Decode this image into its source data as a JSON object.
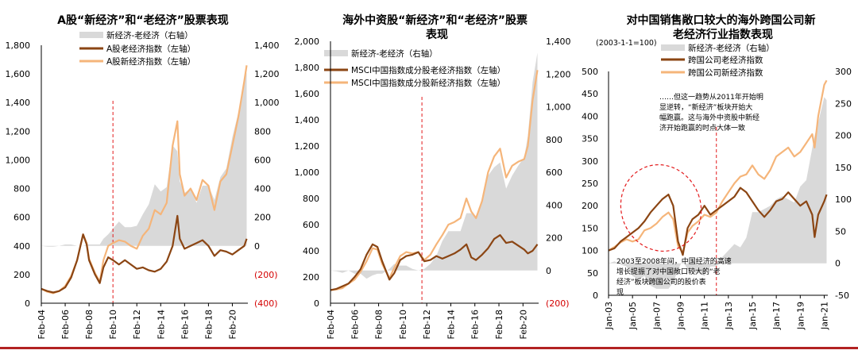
{
  "colors": {
    "old_economy": "#8B4513",
    "new_economy": "#F5B57A",
    "spread_area": "#D9D9D9",
    "vline": "#E31A1C",
    "negative_tick": "#D40000",
    "bottom_rule": "#B22222"
  },
  "chart_data": [
    {
      "type": "line",
      "title": "A股“新经济”和“老经济”股票表现",
      "legend": [
        "新经济-老经济（右轴）",
        "A股老经济指数（左轴）",
        "A股新经济指数（左轴）"
      ],
      "legend_placement": "top-left",
      "x_ticks": [
        "Feb-04",
        "Feb-06",
        "Feb-08",
        "Feb-10",
        "Feb-12",
        "Feb-14",
        "Feb-16",
        "Feb-18",
        "Feb-20"
      ],
      "x_range": [
        2004.0,
        2021.3
      ],
      "left_axis": {
        "ticks": [
          "0",
          "200",
          "400",
          "600",
          "800",
          "1,000",
          "1,200",
          "1,400",
          "1,600",
          "1,800"
        ],
        "range": [
          0,
          1800
        ]
      },
      "right_axis": {
        "ticks": [
          "(400)",
          "(200)",
          "0",
          "200",
          "400",
          "600",
          "800",
          "1,000",
          "1,200",
          "1,400"
        ],
        "range": [
          -400,
          1400
        ]
      },
      "vertical_line_x": 2010.0,
      "series": [
        {
          "name": "A股老经济指数（左轴）",
          "axis": "left",
          "x": [
            2004,
            2004.5,
            2005,
            2005.5,
            2006,
            2006.5,
            2007,
            2007.5,
            2007.8,
            2008,
            2008.5,
            2008.9,
            2009.2,
            2009.6,
            2010,
            2010.5,
            2011,
            2011.5,
            2012,
            2012.5,
            2013,
            2013.5,
            2014,
            2014.5,
            2015,
            2015.4,
            2015.6,
            2016,
            2016.5,
            2017,
            2017.5,
            2018,
            2018.5,
            2019,
            2019.5,
            2020,
            2020.5,
            2021,
            2021.2
          ],
          "y": [
            100,
            85,
            75,
            85,
            110,
            180,
            300,
            480,
            410,
            300,
            200,
            140,
            250,
            320,
            300,
            270,
            300,
            270,
            240,
            250,
            230,
            220,
            240,
            290,
            400,
            610,
            450,
            380,
            400,
            420,
            440,
            400,
            330,
            370,
            360,
            340,
            370,
            400,
            450
          ]
        },
        {
          "name": "A股新经济指数（左轴）",
          "axis": "left",
          "x": [
            2004,
            2004.5,
            2005,
            2005.5,
            2006,
            2006.5,
            2007,
            2007.5,
            2007.8,
            2008,
            2008.5,
            2008.9,
            2009.2,
            2009.6,
            2010,
            2010.5,
            2011,
            2011.5,
            2012,
            2012.5,
            2013,
            2013.5,
            2014,
            2014.5,
            2015,
            2015.4,
            2015.6,
            2016,
            2016.5,
            2017,
            2017.5,
            2018,
            2018.5,
            2019,
            2019.5,
            2020,
            2020.5,
            2021,
            2021.2
          ],
          "y": [
            100,
            80,
            70,
            85,
            120,
            190,
            300,
            480,
            420,
            310,
            210,
            150,
            300,
            400,
            420,
            440,
            430,
            400,
            380,
            470,
            520,
            650,
            620,
            700,
            1100,
            1270,
            900,
            750,
            800,
            720,
            860,
            820,
            650,
            850,
            900,
            1100,
            1300,
            1550,
            1660
          ]
        },
        {
          "name": "新经济-老经济（右轴）",
          "axis": "right",
          "x": [
            2004,
            2004.5,
            2005,
            2005.5,
            2006,
            2006.5,
            2007,
            2007.5,
            2007.8,
            2008,
            2008.5,
            2008.9,
            2009.2,
            2009.6,
            2010,
            2010.5,
            2011,
            2011.5,
            2012,
            2012.5,
            2013,
            2013.5,
            2014,
            2014.5,
            2015,
            2015.4,
            2015.6,
            2016,
            2016.5,
            2017,
            2017.5,
            2018,
            2018.5,
            2019,
            2019.5,
            2020,
            2020.5,
            2021,
            2021.2
          ],
          "y": [
            0,
            -5,
            -5,
            0,
            10,
            10,
            0,
            0,
            10,
            10,
            10,
            10,
            50,
            80,
            120,
            170,
            130,
            130,
            140,
            220,
            290,
            430,
            380,
            410,
            700,
            660,
            450,
            370,
            400,
            300,
            420,
            420,
            320,
            480,
            540,
            760,
            930,
            1150,
            1210
          ]
        }
      ]
    },
    {
      "type": "line",
      "title": "海外中资股“新经济”和“老经济”股票表现",
      "legend": [
        "新经济-老经济（右轴）",
        "MSCI中国指数成分股老经济指数（左轴）",
        "MSCI中国指数成分股新经济指数（左轴）"
      ],
      "legend_placement": "top-left",
      "x_ticks": [
        "Feb-04",
        "Feb-06",
        "Feb-08",
        "Feb-10",
        "Feb-12",
        "Feb-14",
        "Feb-16",
        "Feb-18",
        "Feb-20"
      ],
      "x_range": [
        2004.0,
        2021.3
      ],
      "left_axis": {
        "ticks": [
          "0",
          "200",
          "400",
          "600",
          "800",
          "1,000",
          "1,200",
          "1,400",
          "1,600",
          "1,800",
          "2,000"
        ],
        "range": [
          0,
          2000
        ]
      },
      "right_axis": {
        "ticks": [
          "(200)",
          "0",
          "200",
          "400",
          "600",
          "800",
          "1,000",
          "1,200",
          "1,400"
        ],
        "range": [
          -200,
          1400
        ]
      },
      "vertical_line_x": 2011.6,
      "series": [
        {
          "name": "MSCI中国指数成分股老经济指数（左轴）",
          "axis": "left",
          "x": [
            2004,
            2004.5,
            2005,
            2005.5,
            2006,
            2006.5,
            2007,
            2007.5,
            2007.9,
            2008.3,
            2008.9,
            2009.3,
            2009.8,
            2010.3,
            2010.8,
            2011.3,
            2011.8,
            2012.3,
            2012.8,
            2013.3,
            2013.8,
            2014.3,
            2014.8,
            2015.3,
            2015.7,
            2016.1,
            2016.6,
            2017.1,
            2017.6,
            2018.1,
            2018.6,
            2019.1,
            2019.6,
            2020.1,
            2020.4,
            2020.8,
            2021.2
          ],
          "y": [
            100,
            110,
            130,
            150,
            200,
            260,
            370,
            450,
            430,
            320,
            180,
            230,
            330,
            360,
            370,
            390,
            320,
            330,
            360,
            340,
            360,
            380,
            410,
            450,
            350,
            330,
            370,
            420,
            490,
            520,
            460,
            470,
            440,
            410,
            380,
            400,
            450
          ]
        },
        {
          "name": "MSCI中国指数成分股新经济指数（左轴）",
          "axis": "left",
          "x": [
            2004,
            2004.5,
            2005,
            2005.5,
            2006,
            2006.5,
            2007,
            2007.5,
            2007.9,
            2008.3,
            2008.9,
            2009.3,
            2009.8,
            2010.3,
            2010.8,
            2011.3,
            2011.8,
            2012.3,
            2012.8,
            2013.3,
            2013.8,
            2014.3,
            2014.8,
            2015.3,
            2015.7,
            2016.1,
            2016.6,
            2017.1,
            2017.6,
            2018.1,
            2018.6,
            2019.1,
            2019.6,
            2020.1,
            2020.4,
            2020.8,
            2021.2
          ],
          "y": [
            100,
            105,
            115,
            150,
            180,
            240,
            320,
            420,
            410,
            300,
            190,
            270,
            360,
            390,
            380,
            390,
            330,
            370,
            450,
            520,
            600,
            620,
            650,
            800,
            700,
            650,
            780,
            1000,
            1120,
            1180,
            960,
            1050,
            1080,
            1100,
            1200,
            1550,
            1780
          ]
        },
        {
          "name": "新经济-老经济（右轴）",
          "axis": "right",
          "x": [
            2004,
            2004.5,
            2005,
            2005.5,
            2006,
            2006.5,
            2007,
            2007.5,
            2007.9,
            2008.3,
            2008.9,
            2009.3,
            2009.8,
            2010.3,
            2010.8,
            2011.3,
            2011.8,
            2012.3,
            2012.8,
            2013.3,
            2013.8,
            2014.3,
            2014.8,
            2015.3,
            2015.7,
            2016.1,
            2016.6,
            2017.1,
            2017.6,
            2018.1,
            2018.6,
            2019.1,
            2019.6,
            2020.1,
            2020.4,
            2020.8,
            2021.2
          ],
          "y": [
            0,
            -5,
            -15,
            0,
            -20,
            -20,
            -50,
            -30,
            -20,
            -20,
            10,
            40,
            30,
            30,
            10,
            0,
            10,
            40,
            90,
            180,
            240,
            240,
            240,
            350,
            350,
            320,
            410,
            580,
            630,
            660,
            500,
            580,
            640,
            690,
            820,
            1150,
            1330
          ]
        }
      ]
    },
    {
      "type": "line",
      "title": "对中国销售敞口较大的海外跨国公司新老经济行业指数表现",
      "subtitle": "(2003-1-1=100)",
      "legend": [
        "新经济-老经济（右轴）",
        "跨国公司老经济指数",
        "跨国公司新经济指数"
      ],
      "legend_placement": "top-left",
      "x_ticks": [
        "Jan-03",
        "Jan-05",
        "Jan-07",
        "Jan-09",
        "Jan-11",
        "Jan-13",
        "Jan-15",
        "Jan-17",
        "Jan-19",
        "Jan-21"
      ],
      "x_range": [
        2003.0,
        2021.3
      ],
      "left_axis": {
        "ticks": [
          "0",
          "50",
          "100",
          "150",
          "200",
          "250",
          "300",
          "350",
          "400",
          "450",
          "500"
        ],
        "range": [
          0,
          500
        ]
      },
      "right_axis": {
        "ticks": [
          "-50",
          "0",
          "50",
          "100",
          "150",
          "200",
          "250",
          "300"
        ],
        "range": [
          -50,
          300
        ]
      },
      "vertical_line_x": 2012.0,
      "annotations": [
        "……但这一趋势从2011年开始明显逆转，“新经济”板块开始大幅跑赢。这与海外中资股中新经济开始跑赢的时点大体一致",
        "2003至2008年间，中国经济的高速增长提振了对中国敞口较大的“老经济”板块跨国公司的股价表现"
      ],
      "series": [
        {
          "name": "跨国公司老经济指数",
          "axis": "left",
          "x": [
            2003,
            2003.5,
            2004,
            2004.5,
            2005,
            2005.5,
            2006,
            2006.5,
            2007,
            2007.5,
            2008,
            2008.4,
            2008.8,
            2009.2,
            2009.6,
            2010,
            2010.5,
            2011,
            2011.5,
            2012,
            2012.5,
            2013,
            2013.5,
            2014,
            2014.5,
            2015,
            2015.5,
            2016,
            2016.5,
            2017,
            2017.5,
            2018,
            2018.5,
            2019,
            2019.5,
            2020,
            2020.2,
            2020.5,
            2021,
            2021.2
          ],
          "y": [
            100,
            105,
            120,
            130,
            140,
            150,
            165,
            185,
            200,
            215,
            225,
            200,
            120,
            90,
            150,
            170,
            180,
            200,
            180,
            190,
            200,
            210,
            220,
            240,
            230,
            210,
            190,
            175,
            190,
            210,
            215,
            230,
            215,
            200,
            210,
            180,
            130,
            180,
            210,
            225
          ]
        },
        {
          "name": "跨国公司新经济指数",
          "axis": "left",
          "x": [
            2003,
            2003.5,
            2004,
            2004.5,
            2005,
            2005.5,
            2006,
            2006.5,
            2007,
            2007.5,
            2008,
            2008.4,
            2008.8,
            2009.2,
            2009.6,
            2010,
            2010.5,
            2011,
            2011.5,
            2012,
            2012.5,
            2013,
            2013.5,
            2014,
            2014.5,
            2015,
            2015.5,
            2016,
            2016.5,
            2017,
            2017.5,
            2018,
            2018.5,
            2019,
            2019.5,
            2020,
            2020.2,
            2020.5,
            2021,
            2021.2
          ],
          "y": [
            100,
            108,
            118,
            125,
            120,
            125,
            145,
            150,
            160,
            175,
            185,
            170,
            110,
            95,
            140,
            155,
            165,
            180,
            175,
            185,
            210,
            230,
            250,
            265,
            270,
            290,
            270,
            260,
            280,
            310,
            320,
            330,
            310,
            320,
            340,
            360,
            330,
            400,
            470,
            480
          ]
        },
        {
          "name": "新经济-老经济（右轴）",
          "axis": "right",
          "x": [
            2003,
            2003.5,
            2004,
            2004.5,
            2005,
            2005.5,
            2006,
            2006.5,
            2007,
            2007.5,
            2008,
            2008.4,
            2008.8,
            2009.2,
            2009.6,
            2010,
            2010.5,
            2011,
            2011.5,
            2012,
            2012.5,
            2013,
            2013.5,
            2014,
            2014.5,
            2015,
            2015.5,
            2016,
            2016.5,
            2017,
            2017.5,
            2018,
            2018.5,
            2019,
            2019.5,
            2020,
            2020.2,
            2020.5,
            2021,
            2021.2
          ],
          "y": [
            0,
            3,
            -2,
            -5,
            -20,
            -25,
            -20,
            -35,
            -40,
            -40,
            -40,
            -30,
            -10,
            5,
            -10,
            -15,
            -15,
            -20,
            -5,
            -5,
            10,
            20,
            30,
            25,
            40,
            80,
            80,
            85,
            90,
            100,
            105,
            100,
            95,
            120,
            130,
            180,
            200,
            220,
            260,
            255
          ]
        }
      ]
    }
  ]
}
